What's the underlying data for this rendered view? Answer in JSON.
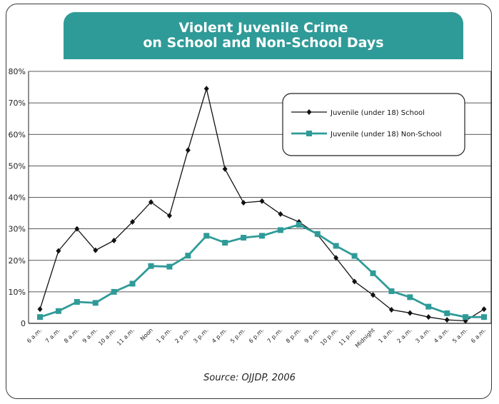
{
  "title_lines": [
    "Violent Juvenile Crime",
    "on School and Non-School Days"
  ],
  "source": "Source:  OJJDP, 2006",
  "colors": {
    "header_bg": "#2f9b98",
    "school": "#111111",
    "nonschool": "#2f9b98"
  },
  "chart_data": {
    "type": "line",
    "title": "Violent Juvenile Crime on School and Non-School Days",
    "categories": [
      "6 a.m.",
      "7 a.m.",
      "8 a.m.",
      "9 a.m.",
      "10 a.m.",
      "11 a.m.",
      "Noon",
      "1 p.m.",
      "2 p.m.",
      "3 p.m.",
      "4 p.m.",
      "5 p.m.",
      "6 p.m.",
      "7 p.m.",
      "8 p.m.",
      "9 p.m.",
      "10 p.m.",
      "11 p.m.",
      "Midnight",
      "1 a.m.",
      "2 a.m.",
      "3 a.m.",
      "4 a.m.",
      "5 a.m.",
      "6 a.m."
    ],
    "series": [
      {
        "name": "Juvenile (under 18) School",
        "marker": "diamond",
        "values": [
          4.5,
          23,
          30,
          23.2,
          26.3,
          32.2,
          38.5,
          34.2,
          55,
          74.5,
          49,
          38.3,
          38.8,
          34.7,
          32.2,
          28.2,
          20.8,
          13.3,
          9,
          4.3,
          3.3,
          2,
          1.1,
          0.8,
          4.5
        ]
      },
      {
        "name": "Juvenile (under 18) Non-School",
        "marker": "square",
        "values": [
          2,
          3.9,
          6.8,
          6.5,
          10,
          12.6,
          18.2,
          18,
          21.5,
          27.8,
          25.6,
          27.2,
          27.8,
          29.6,
          31.3,
          28.4,
          24.6,
          21.4,
          15.9,
          10.2,
          8.3,
          5.3,
          3.2,
          2,
          2
        ]
      }
    ],
    "ylim": [
      0,
      80
    ],
    "yticks": [
      "0",
      "10%",
      "20%",
      "30%",
      "40%",
      "50%",
      "60%",
      "70%",
      "80%"
    ],
    "grid": true,
    "legend": "upper-right"
  }
}
